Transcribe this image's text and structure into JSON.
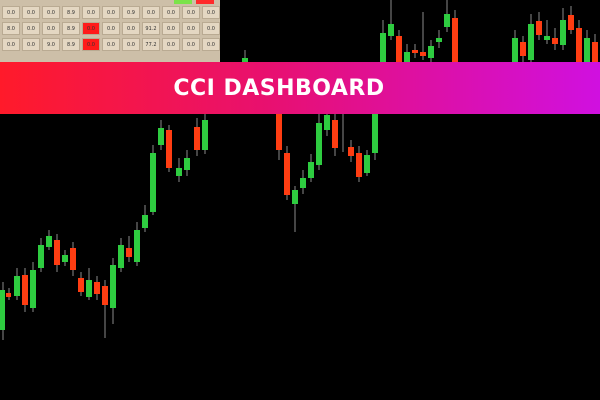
{
  "table": {
    "rows": [
      [
        "0.0",
        "0.0",
        "0.0",
        "8.9",
        "0.0",
        "0.0",
        "0.9",
        "0.0",
        "0.0",
        "0.0",
        "0.0"
      ],
      [
        "8.0",
        "0.0",
        "0.0",
        "8.9",
        {
          "text": "0.0",
          "color": "#ff1a1a"
        },
        "0.0",
        "0.0",
        "91.2",
        "0.0",
        "0.0",
        "0.0"
      ],
      [
        "0.0",
        "0.0",
        "9.0",
        "8.9",
        {
          "text": "0.0",
          "color": "#ff1a1a"
        },
        "0.0",
        "0.0",
        "77.2",
        "0.0",
        "0.0",
        "0.0"
      ]
    ]
  },
  "banner": {
    "title": "CCI DASHBOARD"
  }
}
